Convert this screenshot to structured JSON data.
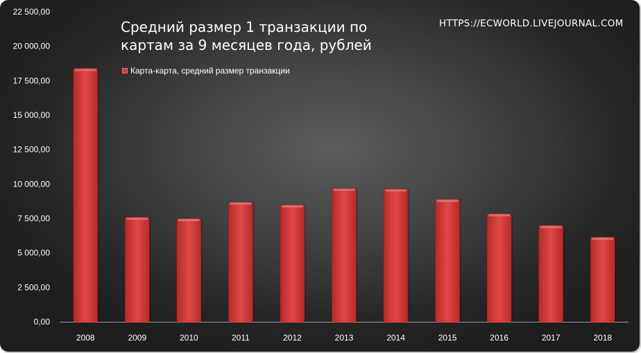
{
  "title_lines": [
    "Средний размер 1 транзакции по",
    "картам за 9 месяцев года,  рублей"
  ],
  "watermark": "HTTPS://ECWORLD.LIVEJOURNAL.COM",
  "legend": {
    "label": "Карта-карта, средний размер транзакции",
    "color": "#d33a3a"
  },
  "colors": {
    "bar": "#d33a3a",
    "bar_dark": "#a82222",
    "bar_light": "#e96060",
    "axis_text": "#ffffff"
  },
  "chart_data": {
    "type": "bar",
    "categories": [
      "2008",
      "2009",
      "2010",
      "2011",
      "2012",
      "2013",
      "2014",
      "2015",
      "2016",
      "2017",
      "2018"
    ],
    "series": [
      {
        "name": "Карта-карта, средний размер транзакции",
        "values": [
          18400,
          7600,
          7500,
          8700,
          8500,
          9700,
          9650,
          8900,
          7850,
          7000,
          6150
        ]
      }
    ],
    "title": "Средний размер 1 транзакции по картам за 9 месяцев года,  рублей",
    "ylim": [
      0,
      22500
    ],
    "yticks": [
      0,
      2500,
      5000,
      7500,
      10000,
      12500,
      15000,
      17500,
      20000,
      22500
    ],
    "ytick_labels": [
      "0,00",
      "2 500,00",
      "5 000,00",
      "7 500,00",
      "10 000,00",
      "12 500,00",
      "15 000,00",
      "17 500,00",
      "20 000,00",
      "22 500,00"
    ],
    "legend_position": "top-left",
    "grid": false
  }
}
